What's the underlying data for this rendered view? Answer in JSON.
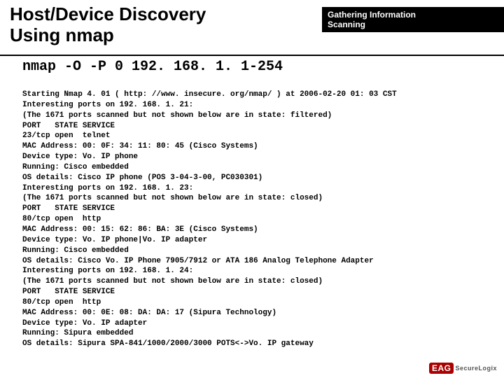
{
  "header": {
    "line1": "Gathering Information",
    "line2": "Scanning"
  },
  "title": {
    "line1": "Host/Device Discovery",
    "line2": "Using nmap"
  },
  "command": "nmap -O -P 0 192. 168. 1. 1-254",
  "output_lines": [
    "Starting Nmap 4. 01 ( http: //www. insecure. org/nmap/ ) at 2006-02-20 01: 03 CST",
    "Interesting ports on 192. 168. 1. 21:",
    "(The 1671 ports scanned but not shown below are in state: filtered)",
    "PORT   STATE SERVICE",
    "23/tcp open  telnet",
    "MAC Address: 00: 0F: 34: 11: 80: 45 (Cisco Systems)",
    "Device type: Vo. IP phone",
    "Running: Cisco embedded",
    "OS details: Cisco IP phone (POS 3-04-3-00, PC030301)",
    "Interesting ports on 192. 168. 1. 23:",
    "(The 1671 ports scanned but not shown below are in state: closed)",
    "PORT   STATE SERVICE",
    "80/tcp open  http",
    "MAC Address: 00: 15: 62: 86: BA: 3E (Cisco Systems)",
    "Device type: Vo. IP phone|Vo. IP adapter",
    "Running: Cisco embedded",
    "OS details: Cisco Vo. IP Phone 7905/7912 or ATA 186 Analog Telephone Adapter",
    "Interesting ports on 192. 168. 1. 24:",
    "(The 1671 ports scanned but not shown below are in state: closed)",
    "PORT   STATE SERVICE",
    "80/tcp open  http",
    "MAC Address: 00: 0E: 08: DA: DA: 17 (Sipura Technology)",
    "Device type: Vo. IP adapter",
    "Running: Sipura embedded",
    "OS details: Sipura SPA-841/1000/2000/3000 POTS<->Vo. IP gateway"
  ],
  "logo": {
    "badge": "EAG",
    "text": "SecureLogix"
  }
}
